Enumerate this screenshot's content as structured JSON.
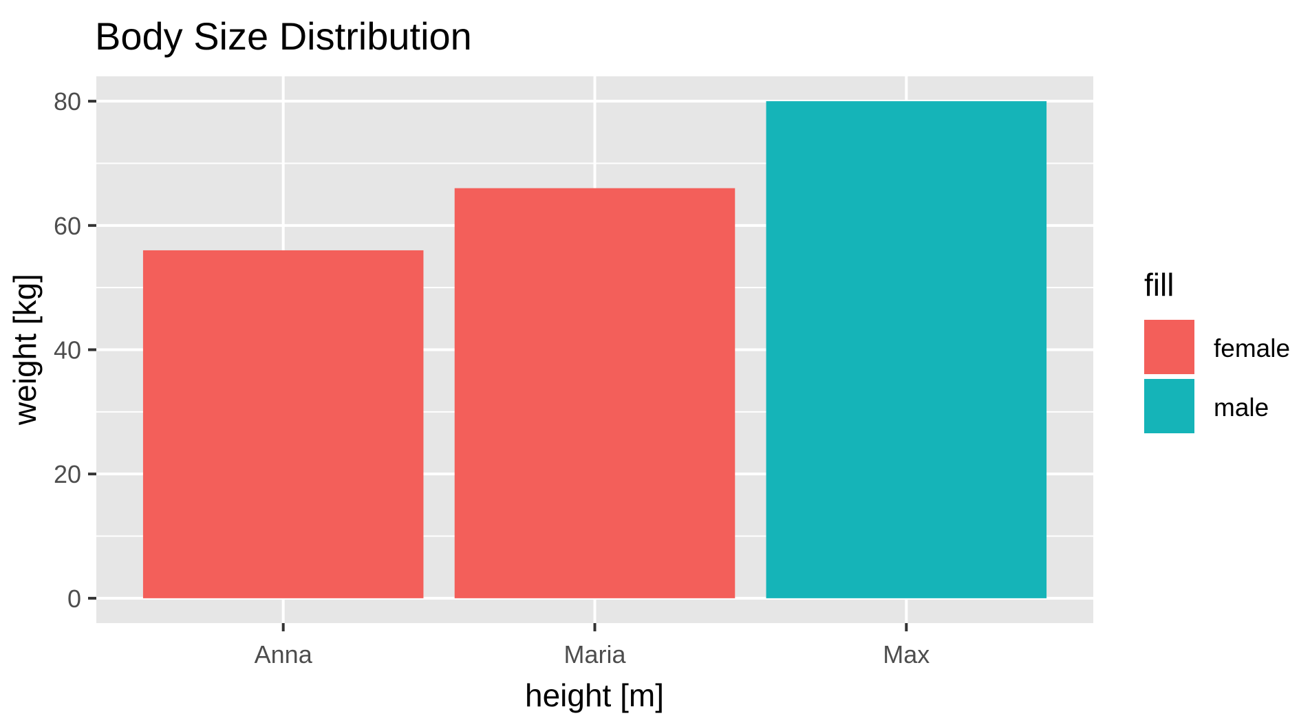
{
  "chart_data": {
    "type": "bar",
    "title": "Body Size Distribution",
    "xlabel": "height [m]",
    "ylabel": "weight [kg]",
    "categories": [
      "Anna",
      "Maria",
      "Max"
    ],
    "values": [
      56,
      66,
      80
    ],
    "fill": [
      "female",
      "female",
      "male"
    ],
    "ylim": [
      -4,
      84
    ],
    "yticks": [
      0,
      20,
      40,
      60,
      80
    ],
    "grid": true,
    "legend": {
      "title": "fill",
      "placement": "right",
      "entries": [
        {
          "label": "female",
          "color": "#F35F5A"
        },
        {
          "label": "male",
          "color": "#15B4B8"
        }
      ]
    },
    "colors": {
      "panel": "#E6E6E6",
      "grid": "#FFFFFF",
      "female": "#F35F5A",
      "male": "#15B4B8"
    }
  }
}
